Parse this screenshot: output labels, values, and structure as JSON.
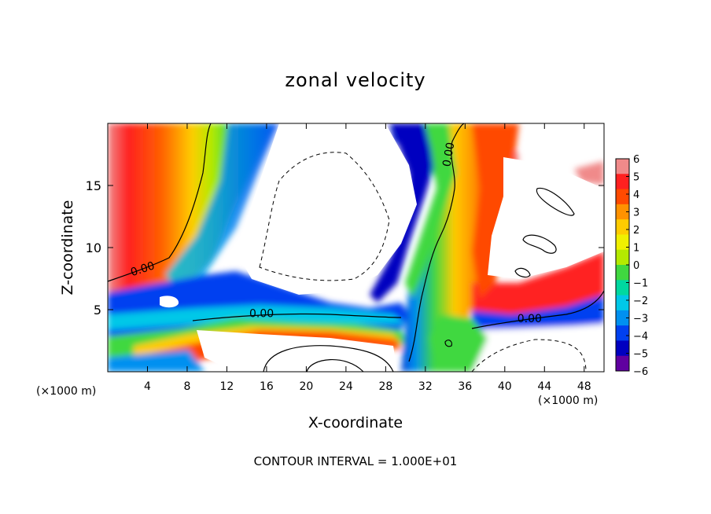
{
  "chart_data": {
    "type": "heatmap",
    "title": "zonal velocity",
    "xlabel": "X-coordinate",
    "ylabel": "Z-coordinate",
    "x_unit_label": "(×1000 m)",
    "x_ticks": [
      4,
      8,
      12,
      16,
      20,
      24,
      28,
      32,
      36,
      40,
      44,
      48
    ],
    "y_ticks": [
      5,
      10,
      15
    ],
    "xlim": [
      0,
      50
    ],
    "ylim": [
      0,
      20
    ],
    "colorbar": {
      "ticks": [
        6,
        5,
        4,
        3,
        2,
        1,
        0,
        -1,
        -2,
        -3,
        -4,
        -5,
        -6
      ],
      "range": [
        -6,
        6
      ],
      "colors": [
        "#f08a8a",
        "#ff2020",
        "#ff4a00",
        "#ff9200",
        "#ffcc00",
        "#f0f000",
        "#b4ea00",
        "#40d840",
        "#00d8a0",
        "#00c8e8",
        "#0090f0",
        "#0040f0",
        "#0000c0",
        "#6000a0"
      ]
    },
    "contour_labels": [
      {
        "text": "0.00",
        "x": 3.5,
        "z": 8.3
      },
      {
        "text": "0.00",
        "x": 15.5,
        "z": 4.7
      },
      {
        "text": "0.00",
        "x": 34.3,
        "z": 17.5
      },
      {
        "text": "0.00",
        "x": 42.5,
        "z": 4.3
      }
    ],
    "footnote": "CONTOUR INTERVAL = 1.000E+01"
  }
}
